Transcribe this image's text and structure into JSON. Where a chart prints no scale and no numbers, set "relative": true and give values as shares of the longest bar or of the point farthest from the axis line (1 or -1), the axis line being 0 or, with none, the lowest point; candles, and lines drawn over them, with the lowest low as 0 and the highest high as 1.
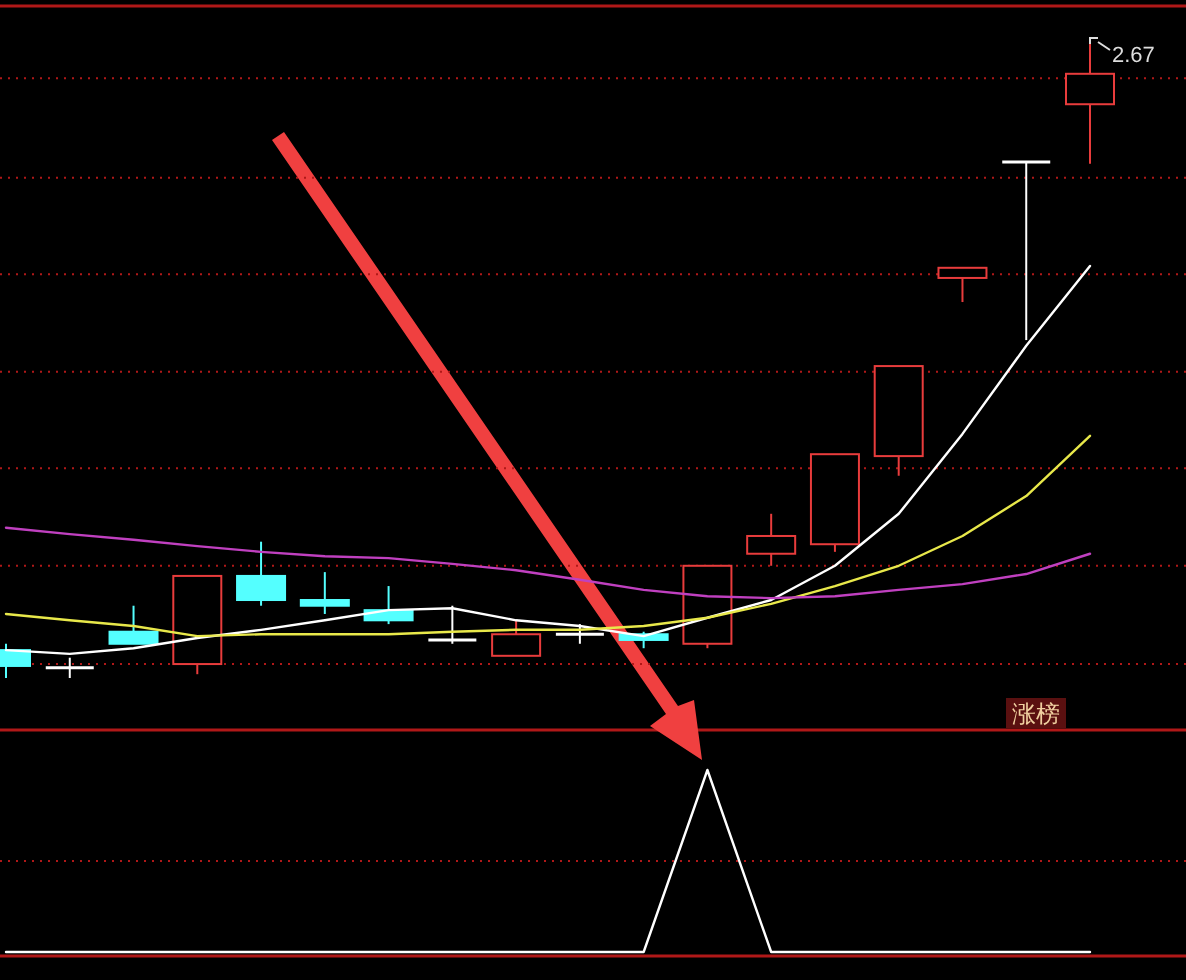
{
  "chart_data": [
    {
      "type": "candlestick",
      "relative": true,
      "ref_lines": [
        {
          "axis": "y",
          "value": 0.022,
          "color": "#b01818",
          "line_style": "dotted"
        },
        {
          "axis": "y",
          "value": 0.177,
          "color": "#b01818",
          "line_style": "dotted"
        },
        {
          "axis": "y",
          "value": 0.331,
          "color": "#b01818",
          "line_style": "dotted"
        },
        {
          "axis": "y",
          "value": 0.483,
          "color": "#b01818",
          "line_style": "dotted"
        },
        {
          "axis": "y",
          "value": 0.637,
          "color": "#b01818",
          "line_style": "dotted"
        },
        {
          "axis": "y",
          "value": 0.789,
          "color": "#b01818",
          "line_style": "dotted"
        },
        {
          "axis": "y",
          "value": 0.946,
          "color": "#b01818",
          "line_style": "dotted"
        }
      ],
      "categories": [
        null,
        null,
        null,
        null,
        null,
        null,
        null,
        null,
        null,
        null,
        null,
        null,
        null,
        null,
        null,
        null,
        null,
        null
      ],
      "ohlc": [
        [
          0.044,
          0.054,
          0,
          0.019
        ],
        [
          0.016,
          0.032,
          0,
          0.016
        ],
        [
          0.073,
          0.114,
          0.054,
          0.054
        ],
        [
          0.022,
          0.161,
          0.006,
          0.161
        ],
        [
          0.161,
          0.215,
          0.114,
          0.123
        ],
        [
          0.123,
          0.167,
          0.101,
          0.114
        ],
        [
          0.107,
          0.145,
          0.085,
          0.091
        ],
        [
          0.06,
          0.114,
          0.054,
          0.06
        ],
        [
          0.035,
          0.091,
          0.035,
          0.069
        ],
        [
          0.069,
          0.085,
          0.054,
          0.069
        ],
        [
          0.069,
          0.073,
          0.047,
          0.06
        ],
        [
          0.054,
          0.177,
          0.047,
          0.177
        ],
        [
          0.196,
          0.259,
          0.177,
          0.224
        ],
        [
          0.211,
          0.353,
          0.199,
          0.353
        ],
        [
          0.35,
          0.492,
          0.319,
          0.492
        ],
        [
          0.631,
          0.647,
          0.593,
          0.647
        ],
        [
          0.814,
          0.814,
          0.533,
          0.814
        ],
        [
          0.905,
          1,
          0.811,
          0.953
        ]
      ],
      "colors": [
        "#54ffff",
        "#ffffff",
        "#54ffff",
        "#e83c3c",
        "#54ffff",
        "#54ffff",
        "#54ffff",
        "#ffffff",
        "#e83c3c",
        "#ffffff",
        "#54ffff",
        "#e83c3c",
        "#e83c3c",
        "#e83c3c",
        "#e83c3c",
        "#e83c3c",
        "#ffffff",
        "#e83c3c"
      ],
      "series": [
        {
          "type": "line",
          "color": "#ffffff",
          "values": [
            0.044,
            0.038,
            0.047,
            0.063,
            0.076,
            0.091,
            0.107,
            0.11,
            0.091,
            0.082,
            0.066,
            0.095,
            0.123,
            0.177,
            0.259,
            0.385,
            0.524,
            0.65
          ]
        },
        {
          "type": "line",
          "color": "#e8e84a",
          "values": [
            0.101,
            0.091,
            0.082,
            0.066,
            0.069,
            0.069,
            0.069,
            0.073,
            0.076,
            0.076,
            0.082,
            0.095,
            0.117,
            0.145,
            0.177,
            0.224,
            0.287,
            0.382
          ]
        },
        {
          "type": "line",
          "color": "#c040c0",
          "values": [
            0.237,
            0.227,
            0.218,
            0.208,
            0.199,
            0.192,
            0.189,
            0.18,
            0.17,
            0.155,
            0.139,
            0.129,
            0.126,
            0.129,
            0.139,
            0.148,
            0.164,
            0.196
          ]
        }
      ],
      "annotations": [
        "2.67",
        "涨榜"
      ]
    },
    {
      "type": "line",
      "relative": true,
      "ref_lines": [
        {
          "axis": "y",
          "value": 0.5,
          "color": "#b01818",
          "line_style": "dotted"
        }
      ],
      "categories": [
        null,
        null,
        null,
        null,
        null,
        null,
        null,
        null,
        null,
        null,
        null,
        null,
        null,
        null,
        null,
        null,
        null,
        null
      ],
      "series": [
        {
          "color": "#ffffff",
          "values": [
            0,
            0,
            0,
            0,
            0,
            0,
            0,
            0,
            0,
            0,
            0,
            1,
            0,
            0,
            0,
            0,
            0,
            0
          ]
        }
      ]
    }
  ]
}
